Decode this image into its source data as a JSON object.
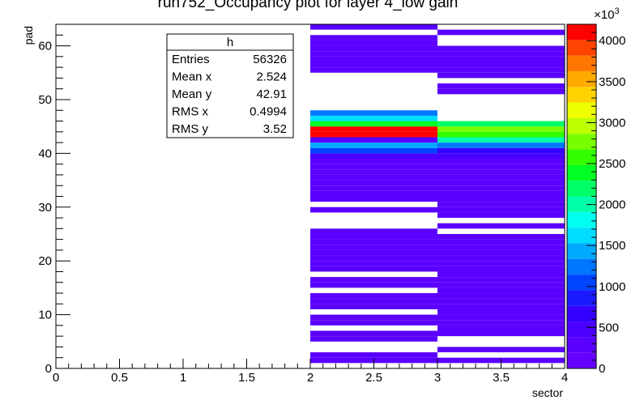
{
  "chart_data": {
    "type": "heatmap",
    "title": "run752_Occupancy plot for layer 4_low gain",
    "xlabel": "sector",
    "ylabel": "pad",
    "xlim": [
      0,
      4
    ],
    "ylim": [
      0,
      64
    ],
    "x_ticks": [
      "0",
      "0.5",
      "1",
      "1.5",
      "2",
      "2.5",
      "3",
      "3.5",
      "4"
    ],
    "y_ticks": [
      "0",
      "10",
      "20",
      "30",
      "40",
      "50",
      "60"
    ],
    "z_range": [
      0,
      4200
    ],
    "z_ticks": [
      "0",
      "500",
      "1000",
      "1500",
      "2000",
      "2500",
      "3000",
      "3500",
      "4000"
    ],
    "z_exponent": "×10",
    "z_exponent_power": "3",
    "palette": [
      "#6600ff",
      "#5a00ff",
      "#4a00ff",
      "#3300ff",
      "#1a1aff",
      "#0044ff",
      "#0077ff",
      "#00aaff",
      "#00ddff",
      "#00ffee",
      "#00ffaa",
      "#00ff66",
      "#00ff22",
      "#33ff00",
      "#77ff00",
      "#bbff00",
      "#eeff00",
      "#ffd200",
      "#ffaa00",
      "#ff7700",
      "#ff4400",
      "#ff0000"
    ],
    "bins": [
      {
        "sector": 2,
        "cells": [
          [
            1,
            0.3
          ],
          [
            2,
            0.3
          ],
          [
            5,
            0.3
          ],
          [
            6,
            0.3
          ],
          [
            8,
            0.3
          ],
          [
            9,
            0.3
          ],
          [
            11,
            0.3
          ],
          [
            12,
            0.3
          ],
          [
            13,
            0.3
          ],
          [
            15,
            0.3
          ],
          [
            16,
            0.3
          ],
          [
            18,
            0.3
          ],
          [
            19,
            0.3
          ],
          [
            20,
            0.3
          ],
          [
            21,
            0.3
          ],
          [
            22,
            0.3
          ],
          [
            23,
            0.3
          ],
          [
            24,
            0.3
          ],
          [
            25,
            0.3
          ],
          [
            29,
            0.3
          ],
          [
            31,
            0.3
          ],
          [
            32,
            0.3
          ],
          [
            33,
            0.3
          ],
          [
            34,
            0.3
          ],
          [
            35,
            0.3
          ],
          [
            36,
            0.3
          ],
          [
            37,
            0.3
          ],
          [
            38,
            0.3
          ],
          [
            39,
            0.4
          ],
          [
            40,
            1.0
          ],
          [
            41,
            1.4
          ],
          [
            42,
            0.3
          ],
          [
            43,
            4.2
          ],
          [
            44,
            4.2
          ],
          [
            45,
            2.4
          ],
          [
            46,
            1.7
          ],
          [
            47,
            1.3
          ],
          [
            55,
            0.3
          ],
          [
            56,
            0.3
          ],
          [
            57,
            0.3
          ],
          [
            58,
            0.3
          ],
          [
            59,
            0.3
          ],
          [
            60,
            0.3
          ],
          [
            61,
            0.3
          ],
          [
            63,
            0.3
          ]
        ]
      },
      {
        "sector": 3,
        "cells": [
          [
            1,
            0.3
          ],
          [
            3,
            0.3
          ],
          [
            6,
            0.3
          ],
          [
            7,
            0.3
          ],
          [
            8,
            0.3
          ],
          [
            9,
            0.3
          ],
          [
            10,
            0.3
          ],
          [
            11,
            0.3
          ],
          [
            12,
            0.3
          ],
          [
            13,
            0.3
          ],
          [
            14,
            0.3
          ],
          [
            15,
            0.3
          ],
          [
            16,
            0.3
          ],
          [
            17,
            0.3
          ],
          [
            18,
            0.3
          ],
          [
            19,
            0.3
          ],
          [
            20,
            0.3
          ],
          [
            21,
            0.3
          ],
          [
            22,
            0.3
          ],
          [
            23,
            0.3
          ],
          [
            24,
            0.3
          ],
          [
            26,
            0.3
          ],
          [
            28,
            0.3
          ],
          [
            29,
            0.3
          ],
          [
            30,
            0.3
          ],
          [
            31,
            0.3
          ],
          [
            32,
            0.3
          ],
          [
            33,
            0.3
          ],
          [
            34,
            0.3
          ],
          [
            35,
            0.3
          ],
          [
            36,
            0.3
          ],
          [
            37,
            0.3
          ],
          [
            38,
            0.3
          ],
          [
            39,
            0.4
          ],
          [
            40,
            0.7
          ],
          [
            41,
            1.3
          ],
          [
            42,
            2.0
          ],
          [
            43,
            2.6
          ],
          [
            44,
            2.8
          ],
          [
            45,
            2.1
          ],
          [
            51,
            0.3
          ],
          [
            52,
            0.3
          ],
          [
            54,
            0.3
          ],
          [
            55,
            0.3
          ],
          [
            56,
            0.3
          ],
          [
            57,
            0.3
          ],
          [
            58,
            0.3
          ],
          [
            59,
            0.3
          ],
          [
            62,
            0.3
          ]
        ]
      }
    ],
    "stats": {
      "name": "h",
      "rows": [
        {
          "label": "Entries",
          "value": "56326"
        },
        {
          "label": "Mean x",
          "value": "2.524"
        },
        {
          "label": "Mean y",
          "value": "42.91"
        },
        {
          "label": "RMS x",
          "value": "0.4994"
        },
        {
          "label": "RMS y",
          "value": "3.52"
        }
      ]
    }
  }
}
